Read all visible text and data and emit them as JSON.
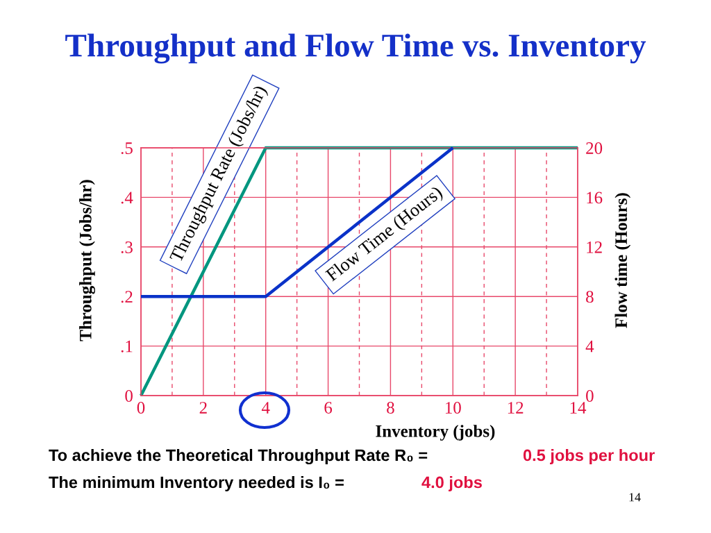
{
  "chart_data": {
    "type": "line",
    "title": "Throughput and Flow Time vs. Inventory",
    "xlabel": "Inventory (jobs)",
    "ylabel": "Throughput (Jobs/hr)",
    "y2label": "Flow time (Hours)",
    "series": [
      {
        "name": "Throughput Rate (Jobs/hr)",
        "color": "#00967f",
        "x": [
          0,
          4,
          14
        ],
        "values": [
          0,
          0.5,
          0.5
        ]
      },
      {
        "name": "Flow Time (Hours)",
        "color": "#0a32c8",
        "axis": "y2",
        "x": [
          0,
          4,
          10
        ],
        "values": [
          8,
          8,
          20
        ]
      }
    ],
    "xlim": [
      0,
      14
    ],
    "xticks": [
      0,
      {
        "value": 1,
        "label": null
      },
      2,
      {
        "value": 3,
        "label": null
      },
      4,
      {
        "value": 5,
        "label": null
      },
      6,
      {
        "value": 7,
        "label": null
      },
      8,
      {
        "value": 9,
        "label": null
      },
      10,
      {
        "value": 11,
        "label": null
      },
      12,
      {
        "value": 13,
        "label": null
      },
      14
    ],
    "ylim": [
      0,
      0.5
    ],
    "yticks": [
      0,
      {
        "value": 0.1,
        "label": ".1"
      },
      {
        "value": 0.2,
        "label": ".2"
      },
      {
        "value": 0.3,
        "label": ".3"
      },
      {
        "value": 0.4,
        "label": ".4"
      },
      {
        "value": 0.5,
        "label": ".5"
      }
    ],
    "y2lim": [
      0,
      20
    ],
    "y2ticks": [
      0,
      4,
      8,
      12,
      16,
      20
    ],
    "grid": true,
    "legend": false,
    "marker": "none",
    "line_style": "solid",
    "annotations": [
      "To achieve the Theoretical Throughput Rate R₀ =",
      "0.5 jobs per hour",
      "The minimum Inventory needed is I₀ =",
      "4.0 jobs",
      "14"
    ]
  }
}
